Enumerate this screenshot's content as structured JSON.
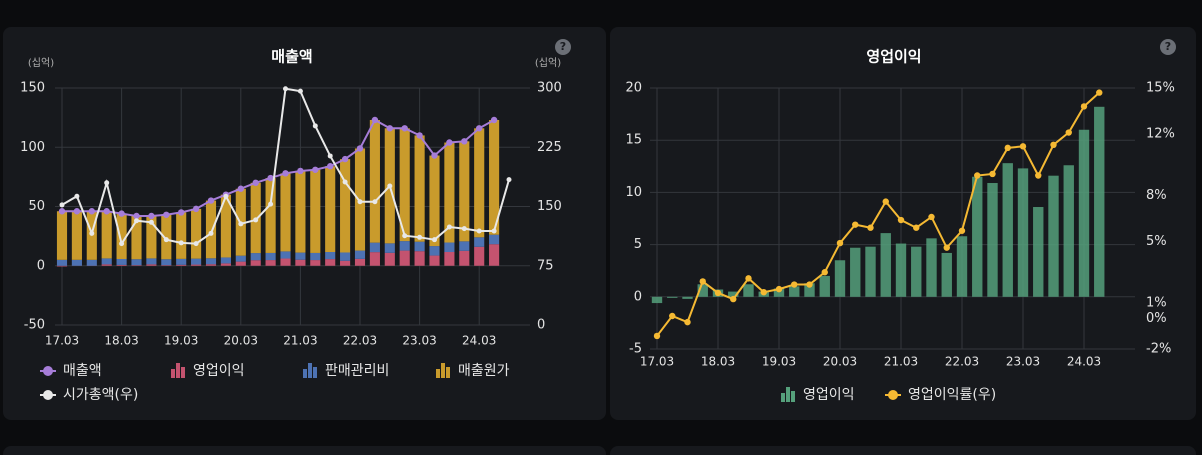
{
  "help_label": "?",
  "chart_data": [
    {
      "type": "combo",
      "title": "매출액",
      "ylabel": "(십억)",
      "y2label": "(십억)",
      "stacked": true,
      "grid": true,
      "categories": [
        "17.03",
        null,
        null,
        null,
        "18.03",
        null,
        null,
        null,
        "19.03",
        null,
        null,
        null,
        "20.03",
        null,
        null,
        null,
        "21.03",
        null,
        null,
        null,
        "22.03",
        null,
        null,
        null,
        "23.03",
        null,
        null,
        null,
        "24.03",
        null,
        null
      ],
      "ylim": [
        -50,
        150
      ],
      "yticks": [
        -50,
        0,
        50,
        100,
        150
      ],
      "y2lim": [
        0,
        300
      ],
      "y2ticks": [
        0,
        75,
        150,
        225,
        300
      ],
      "series": [
        {
          "name": "매출액",
          "kind": "line",
          "color": "#a67dd8",
          "values": [
            46,
            46,
            46,
            46,
            44,
            42,
            42,
            43,
            45,
            48,
            55,
            60,
            65,
            70,
            74,
            78,
            80,
            81,
            84,
            90,
            99,
            123,
            116,
            116,
            110,
            93,
            104,
            105,
            116,
            123,
            null
          ]
        },
        {
          "name": "영업이익",
          "kind": "bar",
          "color": "#c4536f",
          "values": [
            -0.6,
            -0.1,
            -0.2,
            1.2,
            0.7,
            0.5,
            1.2,
            0.5,
            0.8,
            1.0,
            1.3,
            2.0,
            3.5,
            4.7,
            4.8,
            6.1,
            5.1,
            4.8,
            5.6,
            4.2,
            5.8,
            11.5,
            10.9,
            12.8,
            12.3,
            8.6,
            11.6,
            12.6,
            16.0,
            18.2,
            null
          ]
        },
        {
          "name": "판매관리비",
          "kind": "bar",
          "color": "#4d72b3",
          "values": [
            5,
            5,
            5,
            5,
            5,
            5,
            5,
            5,
            5,
            5,
            5,
            5,
            5,
            6,
            6,
            6,
            6,
            6,
            6,
            7,
            7,
            8,
            8,
            8,
            8,
            8,
            8,
            8,
            8,
            8,
            null
          ]
        },
        {
          "name": "매출원가",
          "kind": "bar",
          "color": "#c99b2c",
          "values": [
            41,
            41,
            41,
            39.8,
            38.3,
            36.5,
            35.8,
            37.5,
            39.2,
            42,
            48.7,
            53,
            56.5,
            59.3,
            63.2,
            65.9,
            68.9,
            70.2,
            72.4,
            78.8,
            86.2,
            103.5,
            97.1,
            95.2,
            89.7,
            76.4,
            84.4,
            84.4,
            92,
            96.8,
            null
          ]
        },
        {
          "name": "시가총액(우)",
          "kind": "line",
          "axis": "y2",
          "color": "#e8e8e8",
          "values": [
            152,
            163,
            116,
            180,
            103,
            132,
            130,
            108,
            104,
            103,
            116,
            163,
            128,
            133,
            153,
            299,
            296,
            252,
            214,
            181,
            156,
            156,
            176,
            113,
            111,
            108,
            124,
            122,
            119,
            119,
            184
          ]
        }
      ]
    },
    {
      "type": "combo",
      "title": "영업이익",
      "stacked": false,
      "grid": true,
      "categories": [
        "17.03",
        null,
        null,
        null,
        "18.03",
        null,
        null,
        null,
        "19.03",
        null,
        null,
        null,
        "20.03",
        null,
        null,
        null,
        "21.03",
        null,
        null,
        null,
        "22.03",
        null,
        null,
        null,
        "23.03",
        null,
        null,
        null,
        "24.03",
        null
      ],
      "ylim": [
        -5,
        20
      ],
      "yticks": [
        -5,
        0,
        5,
        10,
        15,
        20
      ],
      "y2lim": [
        -2,
        15
      ],
      "y2ticks": [
        {
          "value": 15,
          "label": "15%"
        },
        {
          "value": 12,
          "label": "12%"
        },
        {
          "value": 8,
          "label": "8%"
        },
        {
          "value": 5,
          "label": "5%"
        },
        {
          "value": 1,
          "label": "1%"
        },
        {
          "value": 0,
          "label": "0%"
        },
        {
          "value": -2,
          "label": "-2%"
        }
      ],
      "series": [
        {
          "name": "영업이익",
          "kind": "bar",
          "color": "#55a07b",
          "values": [
            -0.6,
            -0.1,
            -0.2,
            1.2,
            0.7,
            0.5,
            1.2,
            0.5,
            0.8,
            1.0,
            1.3,
            2.0,
            3.5,
            4.7,
            4.8,
            6.1,
            5.1,
            4.8,
            5.6,
            4.2,
            5.8,
            11.5,
            10.9,
            12.8,
            12.3,
            8.6,
            11.6,
            12.6,
            16.0,
            18.2
          ]
        },
        {
          "name": "영업이익률(우)",
          "kind": "line",
          "axis": "y2",
          "color": "#f5b933",
          "values": [
            -1.15,
            0.15,
            -0.25,
            2.4,
            1.65,
            1.25,
            2.6,
            1.7,
            1.9,
            2.2,
            2.2,
            3.0,
            4.9,
            6.1,
            5.9,
            7.6,
            6.4,
            5.9,
            6.6,
            4.6,
            5.7,
            9.3,
            9.4,
            11.1,
            11.2,
            9.3,
            11.3,
            12.1,
            13.8,
            14.7
          ]
        }
      ]
    }
  ]
}
